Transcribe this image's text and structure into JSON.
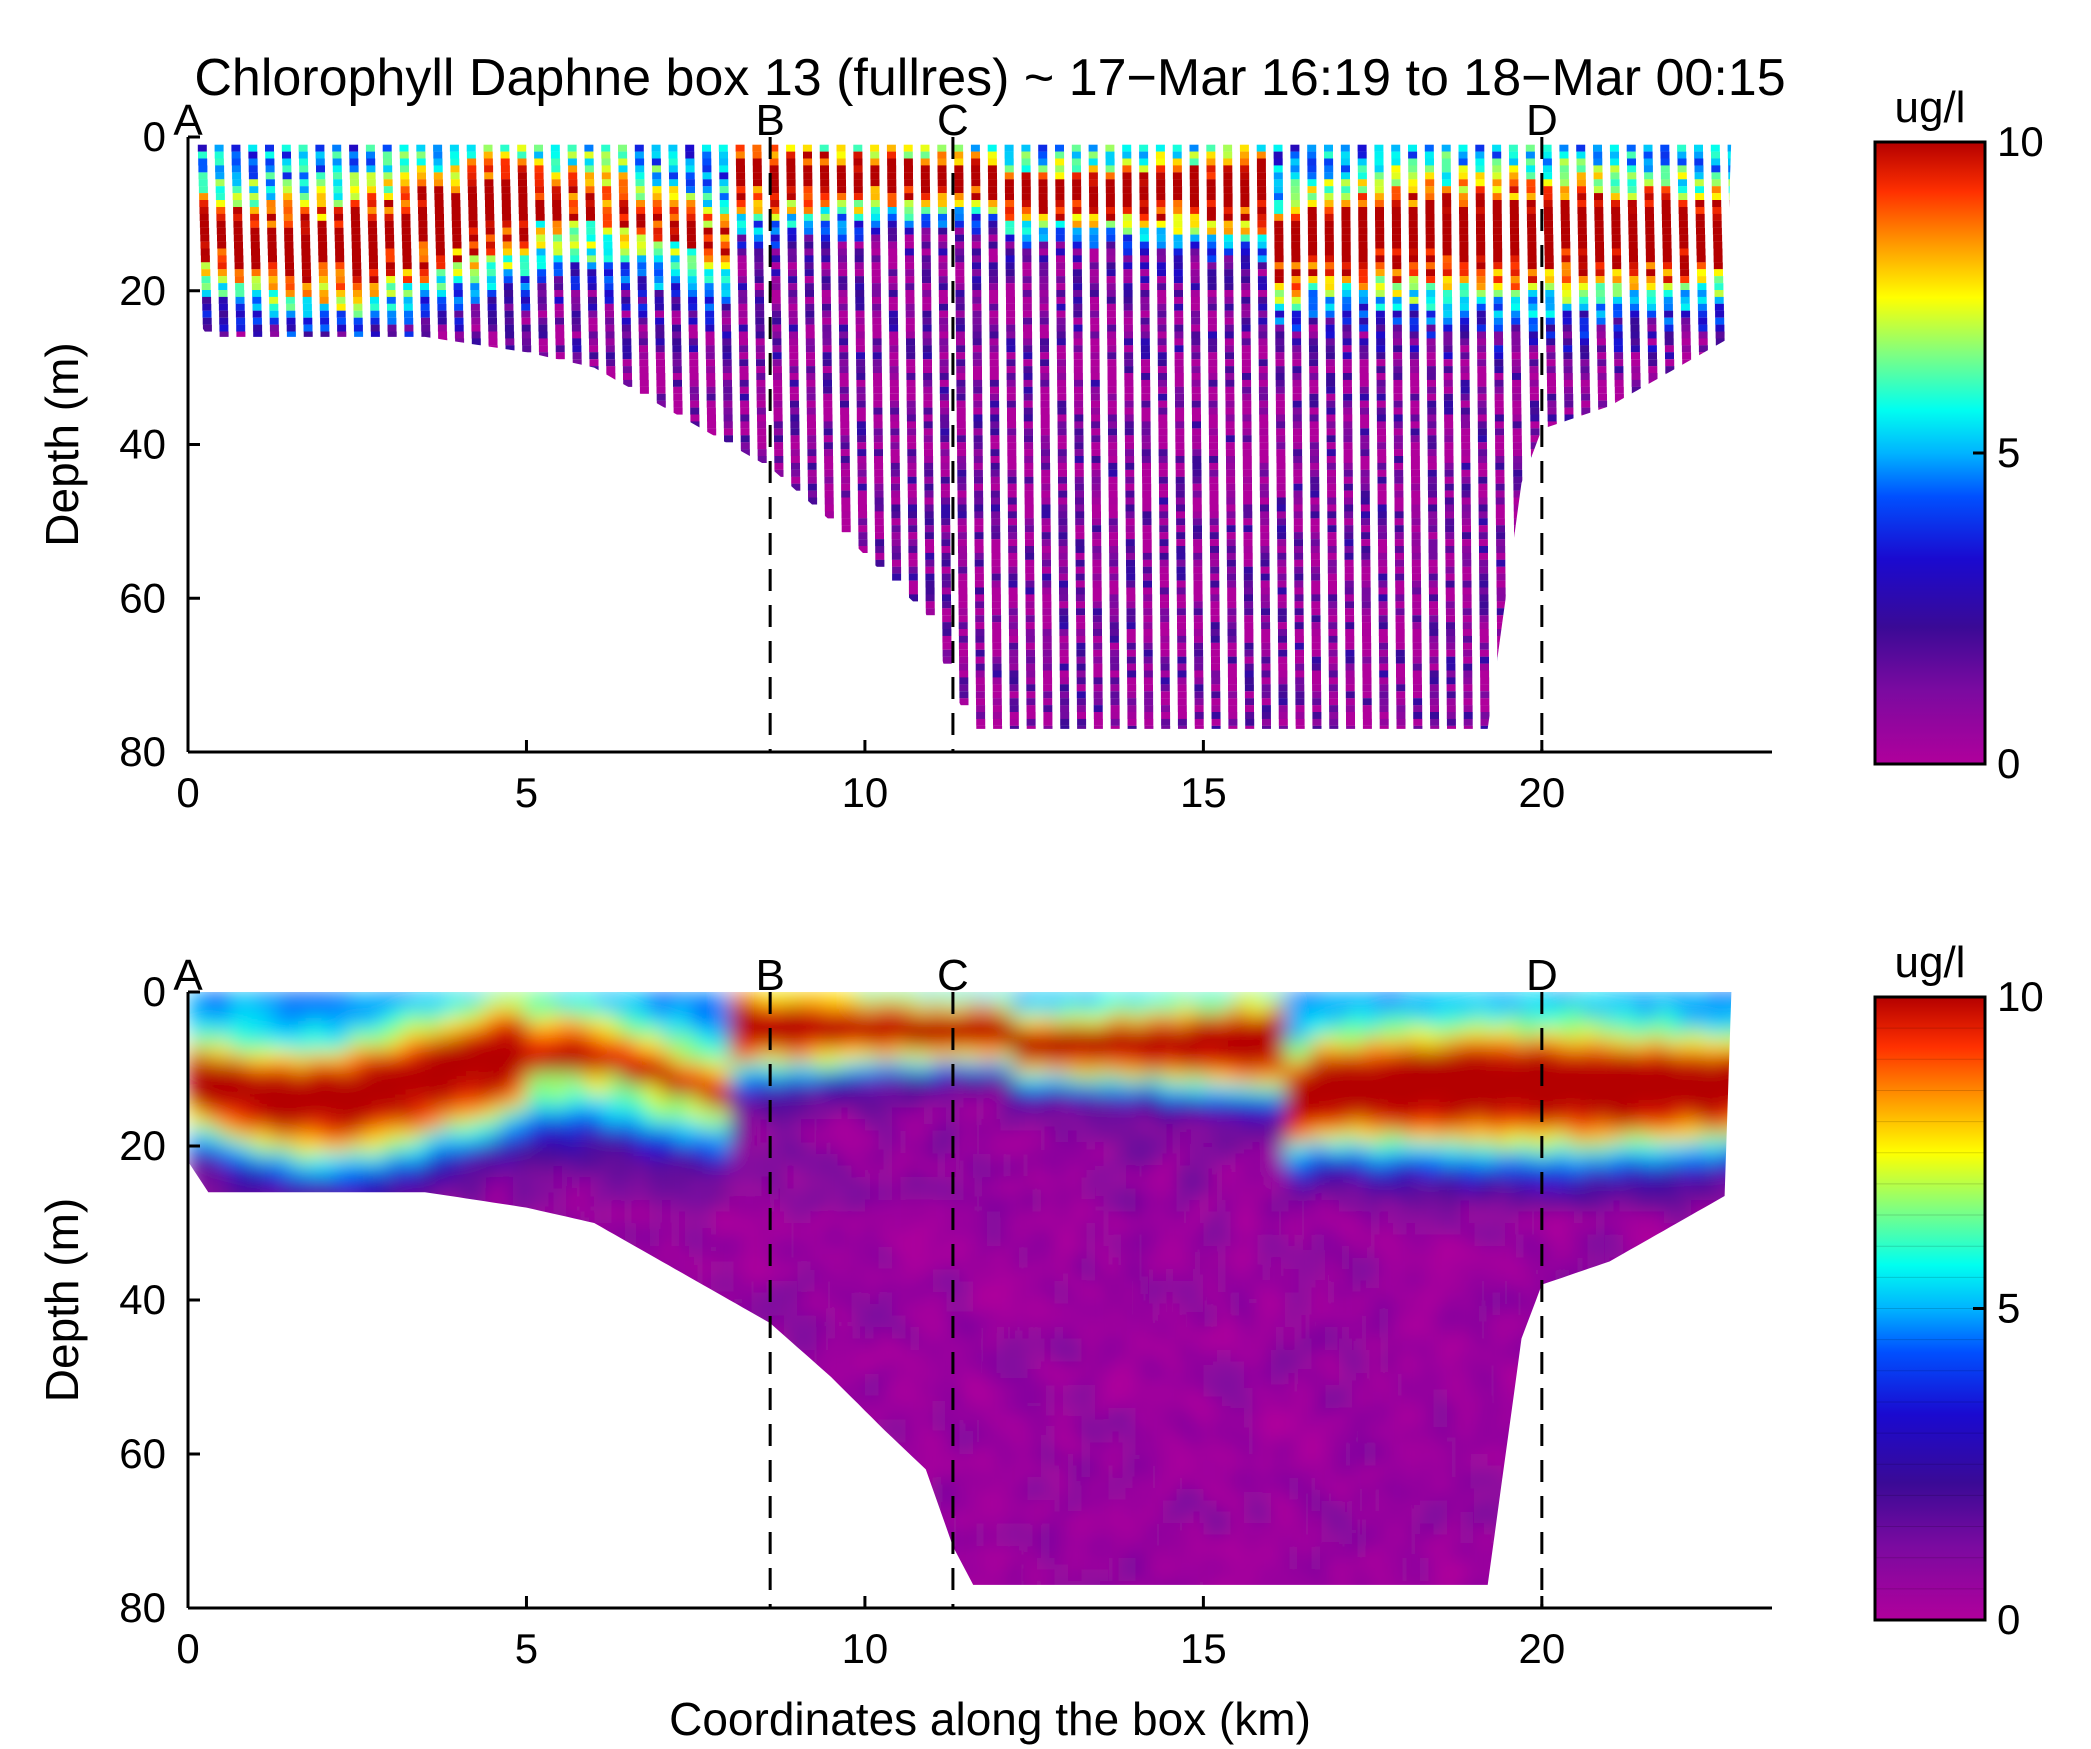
{
  "title": "Chlorophyll Daphne box 13 (fullres) ~ 17−Mar 16:19 to 18−Mar 00:15",
  "xlabel": "Coordinates along the box (km)",
  "colormap": [
    "#b0009c",
    "#7a0aa0",
    "#3a0a96",
    "#1a0ad0",
    "#0050ff",
    "#00b4ff",
    "#00fff0",
    "#80ff80",
    "#ffff00",
    "#ffa000",
    "#ff3000",
    "#b40000"
  ],
  "chart_data": [
    {
      "type": "scatter",
      "panel": "top",
      "ylabel": "Depth (m)",
      "xlim": [
        0,
        23.4
      ],
      "ylim": [
        80,
        0
      ],
      "xticks": [
        "0",
        "5",
        "10",
        "15",
        "20"
      ],
      "yticks": [
        "0",
        "20",
        "40",
        "60",
        "80"
      ],
      "colorbar": {
        "label": "ug/l",
        "min": 0,
        "max": 10,
        "ticks": [
          "10",
          "5",
          "0"
        ]
      },
      "sections": [
        {
          "label": "A",
          "x": 0.0
        },
        {
          "label": "B",
          "x": 8.6
        },
        {
          "label": "C",
          "x": 11.3
        },
        {
          "label": "D",
          "x": 20.0
        }
      ],
      "grid": false
    },
    {
      "type": "heatmap",
      "panel": "bottom",
      "ylabel": "Depth (m)",
      "xlim": [
        0,
        23.4
      ],
      "ylim": [
        80,
        0
      ],
      "xticks": [
        "0",
        "5",
        "10",
        "15",
        "20"
      ],
      "yticks": [
        "0",
        "20",
        "40",
        "60",
        "80"
      ],
      "colorbar": {
        "label": "ug/l",
        "min": 0,
        "max": 10,
        "ticks": [
          "10",
          "5",
          "0"
        ]
      },
      "sections": [
        {
          "label": "A",
          "x": 0.0
        },
        {
          "label": "B",
          "x": 8.6
        },
        {
          "label": "C",
          "x": 11.3
        },
        {
          "label": "D",
          "x": 20.0
        }
      ],
      "max_depth_profile": {
        "x": [
          0.0,
          0.3,
          3.5,
          5.0,
          6.0,
          7.0,
          8.0,
          8.6,
          9.5,
          10.3,
          10.9,
          11.3,
          11.6,
          15.0,
          19.2,
          19.7,
          20.0,
          21.0,
          22.0,
          22.8
        ],
        "depth": [
          22,
          26,
          26,
          28,
          30,
          35,
          40,
          43,
          50,
          57,
          62,
          72,
          77,
          77,
          77,
          45,
          38,
          35,
          30,
          26
        ]
      },
      "grid": false
    }
  ]
}
